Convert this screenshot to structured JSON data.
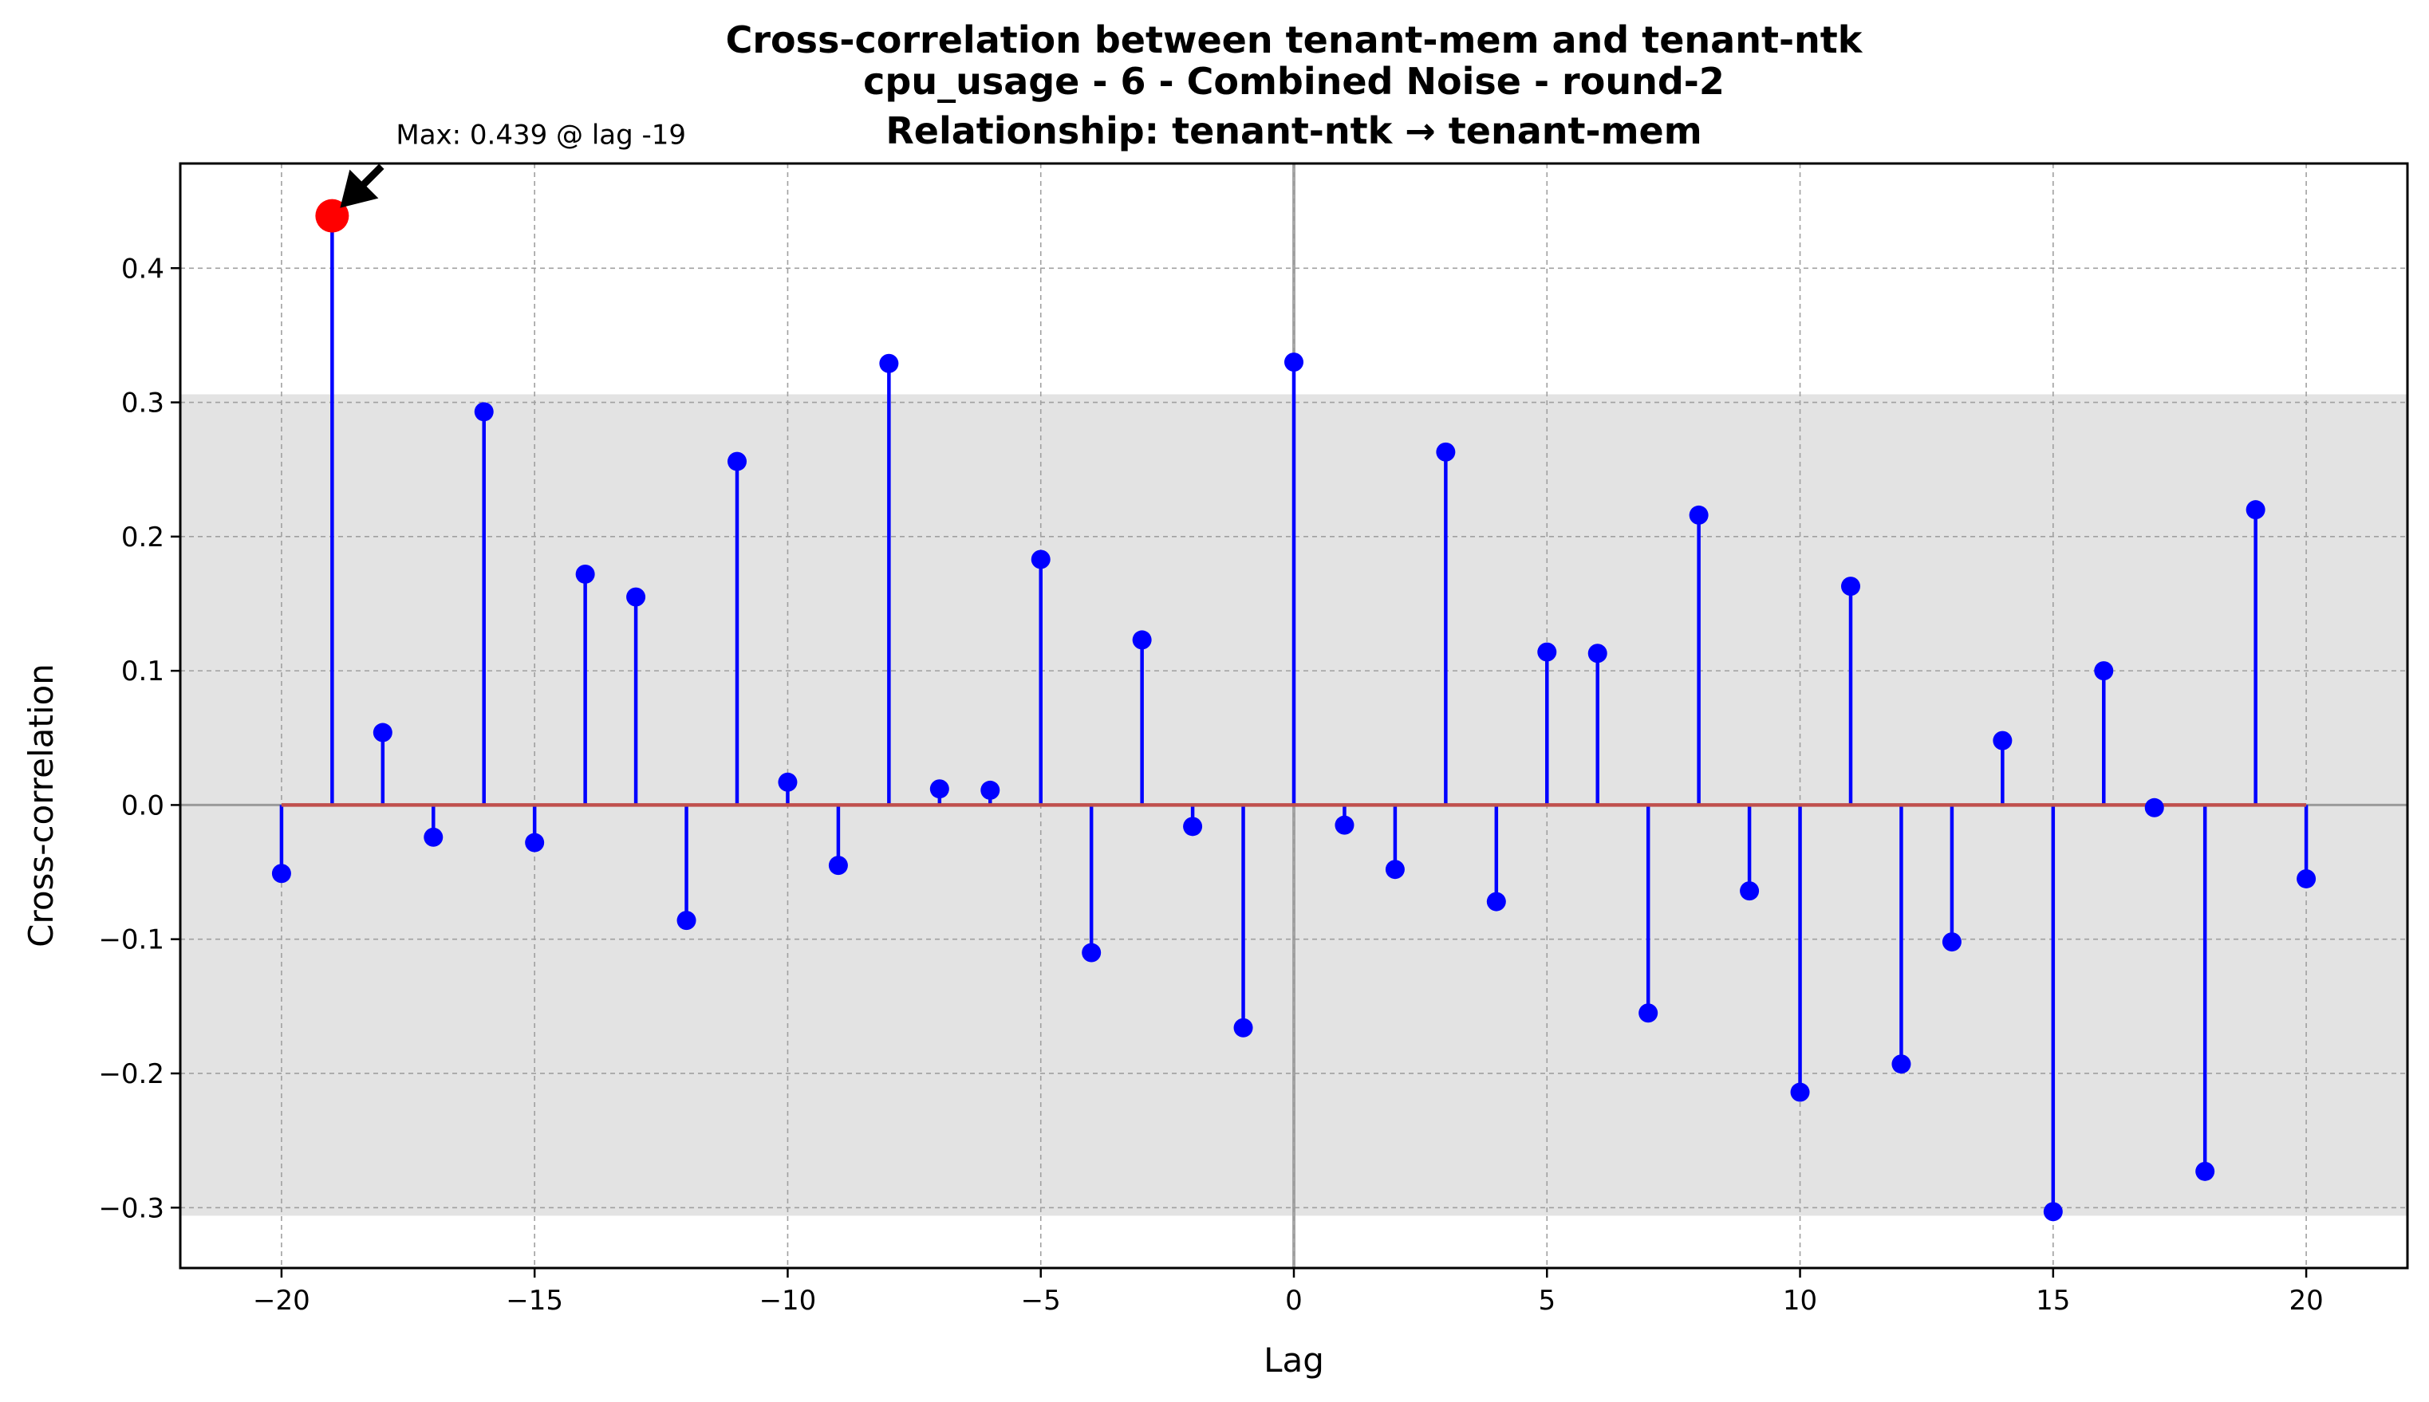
{
  "chart_data": {
    "type": "stem",
    "title_lines": [
      "Cross-correlation between tenant-mem and tenant-ntk",
      "cpu_usage - 6 - Combined Noise - round-2",
      "Relationship: tenant-ntk → tenant-mem"
    ],
    "xlabel": "Lag",
    "ylabel": "Cross-correlation",
    "xlim": [
      -22,
      22
    ],
    "ylim": [
      -0.345,
      0.478
    ],
    "xticks": [
      -20,
      -15,
      -10,
      -5,
      0,
      5,
      10,
      15,
      20
    ],
    "xtick_labels": [
      "−20",
      "−15",
      "−10",
      "−5",
      "0",
      "5",
      "10",
      "15",
      "20"
    ],
    "yticks": [
      -0.3,
      -0.2,
      -0.1,
      0.0,
      0.1,
      0.2,
      0.3,
      0.4
    ],
    "ytick_labels": [
      "−0.3",
      "−0.2",
      "−0.1",
      "0.0",
      "0.1",
      "0.2",
      "0.3",
      "0.4"
    ],
    "confidence_band": [
      -0.306,
      0.306
    ],
    "grid": true,
    "lags": [
      -20,
      -19,
      -18,
      -17,
      -16,
      -15,
      -14,
      -13,
      -12,
      -11,
      -10,
      -9,
      -8,
      -7,
      -6,
      -5,
      -4,
      -3,
      -2,
      -1,
      0,
      1,
      2,
      3,
      4,
      5,
      6,
      7,
      8,
      9,
      10,
      11,
      12,
      13,
      14,
      15,
      16,
      17,
      18,
      19,
      20
    ],
    "values": [
      -0.051,
      0.439,
      0.054,
      -0.024,
      0.293,
      -0.028,
      0.172,
      0.155,
      -0.086,
      0.256,
      0.017,
      -0.045,
      0.329,
      0.012,
      0.011,
      0.183,
      -0.11,
      0.123,
      -0.016,
      -0.166,
      0.33,
      -0.015,
      -0.048,
      0.263,
      -0.072,
      0.114,
      0.113,
      -0.155,
      0.216,
      -0.064,
      -0.214,
      0.163,
      -0.193,
      -0.102,
      0.048,
      -0.303,
      0.1,
      -0.002,
      -0.273,
      0.22,
      -0.055
    ],
    "max_lag": -19,
    "max_value": 0.439,
    "annotation": "Max: 0.439 @ lag -19",
    "colors": {
      "stem": "#0000ff",
      "marker": "#0000ff",
      "max_marker": "#ff0000",
      "baseline": "#c0504d",
      "band": "#e3e3e3",
      "zero_vline": "#999999",
      "grid": "#a0a0a0"
    }
  }
}
